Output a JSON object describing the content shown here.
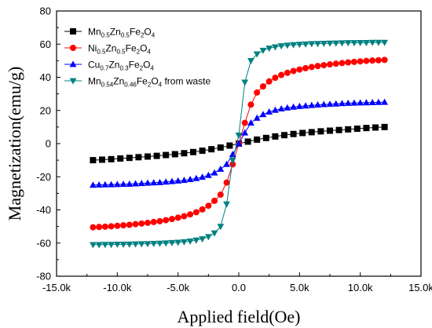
{
  "chart_data": {
    "type": "scatter",
    "xlabel": "Applied field(Oe)",
    "ylabel": "Magnetization(emu/g)",
    "xlim": [
      -15000,
      15000
    ],
    "ylim": [
      -80,
      80
    ],
    "x_ticks": [
      -15000,
      -10000,
      -5000,
      0,
      5000,
      10000,
      15000
    ],
    "x_tick_labels": [
      "-15.0k",
      "-10.0k",
      "-5.0k",
      "0.0",
      "5.0k",
      "10.0k",
      "15.0k"
    ],
    "y_ticks": [
      -80,
      -60,
      -40,
      -20,
      0,
      20,
      40,
      60,
      80
    ],
    "y_tick_labels": [
      "-80",
      "-60",
      "-40",
      "-20",
      "0",
      "20",
      "40",
      "60",
      "80"
    ],
    "legend_position": "top-left",
    "series": [
      {
        "name": "Mn0.5Zn0.5Fe2O4",
        "legend_parts": [
          [
            "Mn",
            ""
          ],
          [
            "0.5",
            "sub"
          ],
          [
            "Zn",
            ""
          ],
          [
            "0.5",
            "sub"
          ],
          [
            "Fe",
            ""
          ],
          [
            "2",
            "sub"
          ],
          [
            "O",
            ""
          ],
          [
            "4",
            "sub"
          ]
        ],
        "color": "#000000",
        "marker": "square",
        "x": [
          -12000,
          -11250,
          -10500,
          -9750,
          -9000,
          -8250,
          -7500,
          -6750,
          -6000,
          -5250,
          -4500,
          -3750,
          -3000,
          -2250,
          -1500,
          -750,
          0,
          750,
          1500,
          2250,
          3000,
          3750,
          4500,
          5250,
          6000,
          6750,
          7500,
          8250,
          9000,
          9750,
          10500,
          11250,
          12000
        ],
        "y": [
          -10.0,
          -9.7,
          -9.4,
          -9.0,
          -8.6,
          -8.2,
          -7.8,
          -7.4,
          -6.9,
          -6.4,
          -5.8,
          -5.1,
          -4.3,
          -3.4,
          -2.4,
          -1.2,
          0.0,
          1.2,
          2.4,
          3.4,
          4.3,
          5.1,
          5.8,
          6.4,
          6.9,
          7.4,
          7.8,
          8.2,
          8.6,
          9.0,
          9.4,
          9.7,
          10.0
        ]
      },
      {
        "name": "Ni0.5Zn0.5Fe2O4",
        "legend_parts": [
          [
            "Ni",
            ""
          ],
          [
            "0.5",
            "sub"
          ],
          [
            "Zn",
            ""
          ],
          [
            "0.5",
            "sub"
          ],
          [
            "Fe",
            ""
          ],
          [
            "2",
            "sub"
          ],
          [
            "O",
            ""
          ],
          [
            "4",
            "sub"
          ]
        ],
        "color": "#ff0000",
        "marker": "circle",
        "x": [
          -12000,
          -11500,
          -11000,
          -10500,
          -10000,
          -9500,
          -9000,
          -8500,
          -8000,
          -7500,
          -7000,
          -6500,
          -6000,
          -5500,
          -5000,
          -4500,
          -4000,
          -3500,
          -3000,
          -2500,
          -2000,
          -1500,
          -1000,
          -500,
          0,
          500,
          1000,
          1500,
          2000,
          2500,
          3000,
          3500,
          4000,
          4500,
          5000,
          5500,
          6000,
          6500,
          7000,
          7500,
          8000,
          8500,
          9000,
          9500,
          10000,
          10500,
          11000,
          11500,
          12000
        ],
        "y": [
          -50.5,
          -50.3,
          -50.1,
          -49.9,
          -49.6,
          -49.3,
          -49.0,
          -48.6,
          -48.2,
          -47.8,
          -47.3,
          -46.8,
          -46.2,
          -45.5,
          -44.7,
          -43.8,
          -42.7,
          -41.4,
          -39.7,
          -37.5,
          -34.5,
          -30.8,
          -23.5,
          -12.5,
          0.0,
          12.5,
          23.5,
          30.8,
          34.5,
          37.5,
          39.7,
          41.4,
          42.7,
          43.8,
          44.7,
          45.5,
          46.2,
          46.8,
          47.3,
          47.8,
          48.2,
          48.6,
          49.0,
          49.3,
          49.6,
          49.9,
          50.1,
          50.3,
          50.5
        ]
      },
      {
        "name": "Cu0.7Zn0.3Fe2O4",
        "legend_parts": [
          [
            "Cu",
            ""
          ],
          [
            "0.7",
            "sub"
          ],
          [
            "Zn",
            ""
          ],
          [
            "0.3",
            "sub"
          ],
          [
            "Fe",
            ""
          ],
          [
            "2",
            "sub"
          ],
          [
            "O",
            ""
          ],
          [
            "4",
            "sub"
          ]
        ],
        "color": "#0000ff",
        "marker": "triangle-up",
        "x": [
          -12000,
          -11500,
          -11000,
          -10500,
          -10000,
          -9500,
          -9000,
          -8500,
          -8000,
          -7500,
          -7000,
          -6500,
          -6000,
          -5500,
          -5000,
          -4500,
          -4000,
          -3500,
          -3000,
          -2500,
          -2000,
          -1500,
          -1000,
          -500,
          0,
          500,
          1000,
          1500,
          2000,
          2500,
          3000,
          3500,
          4000,
          4500,
          5000,
          5500,
          6000,
          6500,
          7000,
          7500,
          8000,
          8500,
          9000,
          9500,
          10000,
          10500,
          11000,
          11500,
          12000
        ],
        "y": [
          -25.0,
          -24.9,
          -24.8,
          -24.7,
          -24.6,
          -24.5,
          -24.4,
          -24.2,
          -24.0,
          -23.8,
          -23.6,
          -23.4,
          -23.1,
          -22.8,
          -22.5,
          -22.1,
          -21.6,
          -21.0,
          -20.2,
          -19.1,
          -17.6,
          -15.4,
          -12.5,
          -6.5,
          0.0,
          6.5,
          12.5,
          15.4,
          17.6,
          19.1,
          20.2,
          21.0,
          21.6,
          22.1,
          22.5,
          22.8,
          23.1,
          23.4,
          23.6,
          23.8,
          24.0,
          24.2,
          24.4,
          24.5,
          24.6,
          24.7,
          24.8,
          24.9,
          25.0
        ]
      },
      {
        "name": "Mn0.54Zn0.46Fe2O4 from waste",
        "legend_parts": [
          [
            "Mn",
            ""
          ],
          [
            "0.54",
            "sub"
          ],
          [
            "Zn",
            ""
          ],
          [
            "0.46",
            "sub"
          ],
          [
            "Fe",
            ""
          ],
          [
            "2",
            "sub"
          ],
          [
            "O",
            ""
          ],
          [
            "4",
            "sub"
          ],
          [
            " from waste",
            ""
          ]
        ],
        "color": "#008080",
        "marker": "triangle-down",
        "x": [
          -12000,
          -11500,
          -11000,
          -10500,
          -10000,
          -9500,
          -9000,
          -8500,
          -8000,
          -7500,
          -7000,
          -6500,
          -6000,
          -5500,
          -5000,
          -4500,
          -4000,
          -3500,
          -3000,
          -2500,
          -2000,
          -1500,
          -1000,
          -500,
          0,
          500,
          1000,
          1500,
          2000,
          2500,
          3000,
          3500,
          4000,
          4500,
          5000,
          5500,
          6000,
          6500,
          7000,
          7500,
          8000,
          8500,
          9000,
          9500,
          10000,
          10500,
          11000,
          11500,
          12000
        ],
        "y": [
          -61.0,
          -61.0,
          -60.9,
          -60.9,
          -60.8,
          -60.8,
          -60.7,
          -60.6,
          -60.5,
          -60.4,
          -60.3,
          -60.2,
          -60.0,
          -59.8,
          -59.6,
          -59.3,
          -58.9,
          -58.3,
          -57.5,
          -56.2,
          -54.0,
          -50.0,
          -36.5,
          -10.0,
          5.0,
          37.0,
          50.0,
          54.0,
          56.2,
          57.5,
          58.3,
          58.9,
          59.3,
          59.6,
          59.8,
          60.0,
          60.2,
          60.3,
          60.4,
          60.5,
          60.6,
          60.7,
          60.8,
          60.8,
          60.9,
          60.9,
          61.0,
          61.0,
          61.0
        ]
      }
    ]
  }
}
